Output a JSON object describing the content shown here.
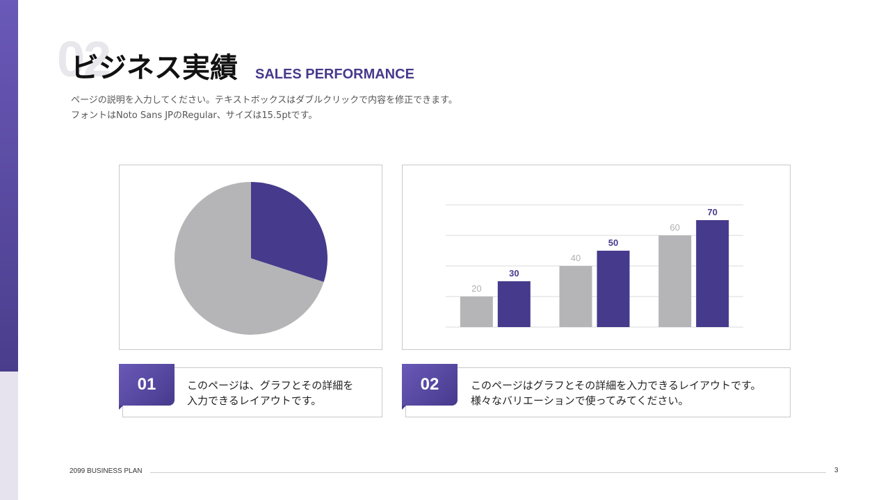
{
  "section_number": "02",
  "title": "ビジネス実績",
  "subtitle": "SALES PERFORMANCE",
  "description": [
    "ページの説明を入力してください。テキストボックスはダブルクリックで内容を修正できます。",
    "フォントはNoto Sans JPのRegular、サイズは15.5ptです。"
  ],
  "colors": {
    "accent": "#463a8c",
    "gray": "#b5b5b7",
    "sidebar": "#6a59b8"
  },
  "chart_data": [
    {
      "type": "pie",
      "slices": [
        {
          "value": 30,
          "color": "#463a8c"
        },
        {
          "value": 70,
          "color": "#b5b5b7"
        }
      ]
    },
    {
      "type": "bar",
      "categories": [
        "",
        "",
        ""
      ],
      "series": [
        {
          "values": [
            20,
            40,
            60
          ],
          "color": "#b5b5b7"
        },
        {
          "values": [
            30,
            50,
            70
          ],
          "color": "#463a8c"
        }
      ],
      "ylim": [
        0,
        80
      ],
      "grid": true
    }
  ],
  "notes": [
    {
      "number": "01",
      "lines": [
        "このページは、グラフとその詳細を",
        "入力できるレイアウトです。"
      ]
    },
    {
      "number": "02",
      "lines": [
        "このページはグラフとその詳細を入力できるレイアウトです。",
        "様々なバリエーションで使ってみてください。"
      ]
    }
  ],
  "footer": {
    "label": "2099 BUSINESS PLAN",
    "page": "3"
  }
}
